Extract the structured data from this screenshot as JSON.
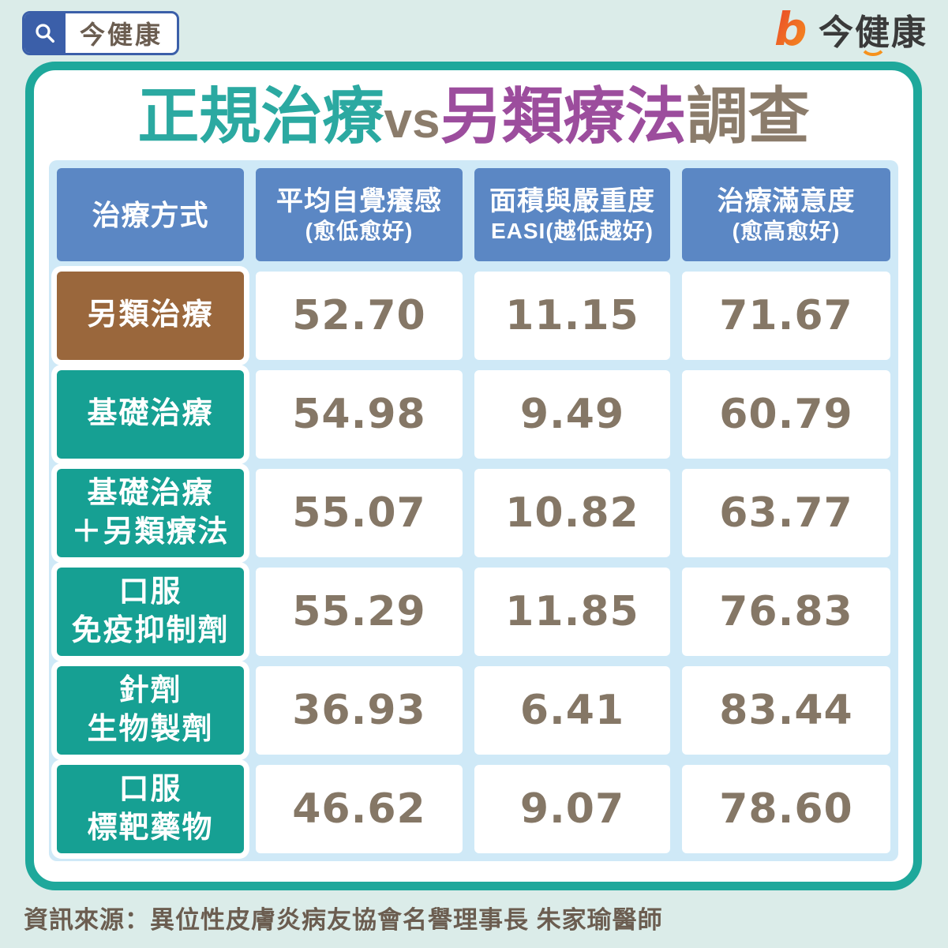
{
  "search_logo": {
    "label": "今健康"
  },
  "brand": {
    "glyph": "b",
    "name": "今健康"
  },
  "title": {
    "part1": "正規治療",
    "vs": "vs",
    "part2": "另類療法",
    "part3": "調查"
  },
  "table": {
    "headers": [
      {
        "main": "治療方式",
        "sub": ""
      },
      {
        "main": "平均自覺癢感",
        "sub": "(愈低愈好)"
      },
      {
        "main": "面積與嚴重度",
        "sub": "EASI(越低越好)"
      },
      {
        "main": "治療滿意度",
        "sub": "(愈高愈好)"
      }
    ],
    "rows": [
      {
        "label_line1": "另類治療",
        "label_line2": "",
        "highlight": true,
        "values": [
          "52.70",
          "11.15",
          "71.67"
        ]
      },
      {
        "label_line1": "基礎治療",
        "label_line2": "",
        "highlight": false,
        "values": [
          "54.98",
          "9.49",
          "60.79"
        ]
      },
      {
        "label_line1": "基礎治療",
        "label_line2": "＋另類療法",
        "highlight": false,
        "values": [
          "55.07",
          "10.82",
          "63.77"
        ]
      },
      {
        "label_line1": "口服",
        "label_line2": "免疫抑制劑",
        "highlight": false,
        "values": [
          "55.29",
          "11.85",
          "76.83"
        ]
      },
      {
        "label_line1": "針劑",
        "label_line2": "生物製劑",
        "highlight": false,
        "values": [
          "36.93",
          "6.41",
          "83.44"
        ]
      },
      {
        "label_line1": "口服",
        "label_line2": "標靶藥物",
        "highlight": false,
        "values": [
          "46.62",
          "9.07",
          "78.60"
        ]
      }
    ]
  },
  "source": "資訊來源：異位性皮膚炎病友協會名譽理事長 朱家瑜醫師",
  "colors": {
    "page_bg": "#dbece9",
    "card_border_teal": "#1ea89b",
    "panel_blue": "#cfe9f7",
    "header_blue": "#5b87c4",
    "row_teal": "#16a093",
    "row_brown": "#9a673c",
    "value_text": "#857766",
    "title_teal": "#2ba9a1",
    "title_purple": "#9c4d9d",
    "title_gray": "#8b7c6b",
    "search_blue": "#3b5fa9",
    "brand_orange_1": "#e8442a",
    "brand_orange_2": "#f6921e"
  },
  "chart_data": {
    "type": "table",
    "title": "正規治療vs另類療法調查",
    "columns": [
      "治療方式",
      "平均自覺癢感(愈低愈好)",
      "面積與嚴重度EASI(越低越好)",
      "治療滿意度(愈高愈好)"
    ],
    "rows": [
      [
        "另類治療",
        52.7,
        11.15,
        71.67
      ],
      [
        "基礎治療",
        54.98,
        9.49,
        60.79
      ],
      [
        "基礎治療＋另類療法",
        55.07,
        10.82,
        63.77
      ],
      [
        "口服免疫抑制劑",
        55.29,
        11.85,
        76.83
      ],
      [
        "針劑生物製劑",
        36.93,
        6.41,
        83.44
      ],
      [
        "口服標靶藥物",
        46.62,
        9.07,
        78.6
      ]
    ],
    "source": "資訊來源：異位性皮膚炎病友協會名譽理事長 朱家瑜醫師"
  }
}
